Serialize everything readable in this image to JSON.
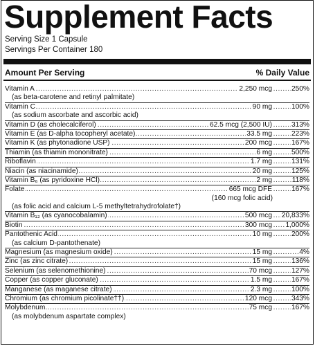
{
  "title": "Supplement Facts",
  "serving_size": "Serving Size 1 Capsule",
  "servings_per_container": "Servings Per Container 180",
  "header": {
    "amount_per_serving": "Amount Per Serving",
    "daily_value": "% Daily Value"
  },
  "nutrients": [
    {
      "name": "Vitamin A",
      "amount": "2,250 mcg",
      "dv": "250%",
      "note": "(as beta-carotene and retinyl palmitate)"
    },
    {
      "name": "Vitamin C",
      "amount": "90 mg",
      "dv": "100%",
      "note": "(as sodium ascorbate and ascorbic acid)"
    },
    {
      "name": "Vitamin D (as cholecalciferol)",
      "amount": "62.5 mcg (2,500 IU)",
      "dv": "313%"
    },
    {
      "name": "Vitamin E (as D-alpha tocopheryl acetate)",
      "amount": "33.5 mg",
      "dv": "223%"
    },
    {
      "name": "Vitamin K (as phytonadione USP)",
      "amount": "200 mcg",
      "dv": "167%"
    },
    {
      "name": "Thiamin (as thiamin mononitrate)",
      "amount": "6 mg",
      "dv": "500%"
    },
    {
      "name": "Riboflavin",
      "amount": "1.7 mg",
      "dv": "131%"
    },
    {
      "name": "Niacin (as niacinamide)",
      "amount": "20 mg",
      "dv": "125%"
    },
    {
      "name": "Vitamin B₆ (as pyridoxine HCl)",
      "amount": "2 mg",
      "dv": "118%"
    },
    {
      "name": "Folate",
      "amount": "665 mcg DFE",
      "dv": "167%",
      "sub_amount": "(160 mcg folic acid)",
      "note": "(as folic acid and calcium L-5 methyltetrahydrofolate†)"
    },
    {
      "name": "Vitamin B₁₂ (as cyanocobalamin)",
      "amount": "500 mcg",
      "dv": "20,833%"
    },
    {
      "name": "Biotin",
      "amount": "300 mcg",
      "dv": "1,000%"
    },
    {
      "name": "Pantothenic Acid",
      "amount": "10 mg",
      "dv": "200%",
      "note": "(as calcium D-pantothenate)"
    },
    {
      "name": "Magnesium (as magnesium oxide)",
      "amount": "15 mg",
      "dv": "4%"
    },
    {
      "name": "Zinc (as zinc citrate)",
      "amount": "15 mg",
      "dv": "136%"
    },
    {
      "name": "Selenium (as selenomethionine)",
      "amount": "70 mcg",
      "dv": "127%"
    },
    {
      "name": "Copper (as copper gluconate)",
      "amount": "1.5 mg",
      "dv": "167%"
    },
    {
      "name": "Manganese (as maganese citrate)",
      "amount": "2.3 mg",
      "dv": "100%"
    },
    {
      "name": "Chromium (as chromium picolinate††)",
      "amount": "120 mcg",
      "dv": "343%"
    },
    {
      "name": "Molybdenum",
      "amount": "75 mcg",
      "dv": "167%",
      "note": "(as molybdenum aspartate complex)"
    }
  ]
}
